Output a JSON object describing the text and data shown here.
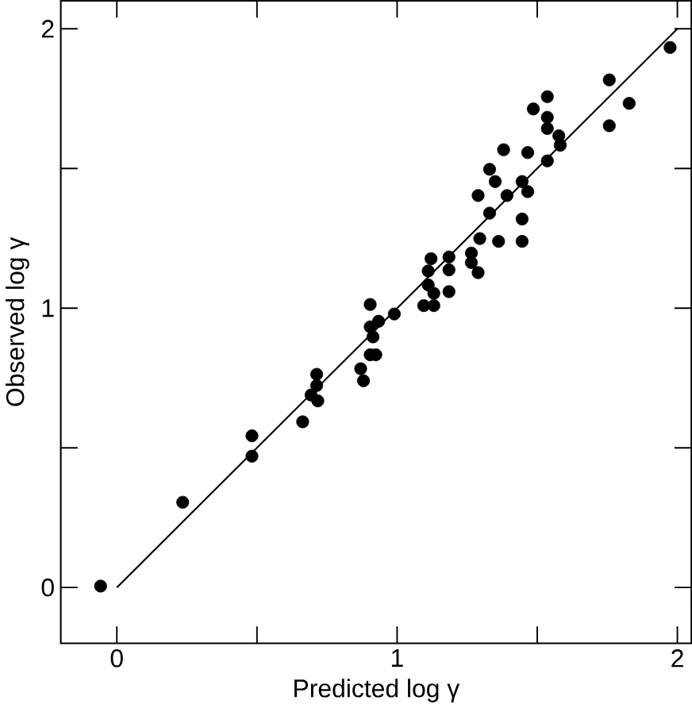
{
  "chart_data": {
    "type": "scatter",
    "xlabel": "Predicted log γ",
    "ylabel": "Observed log γ",
    "xlim": [
      -0.2,
      2.05
    ],
    "ylim": [
      -0.2,
      2.1
    ],
    "xticks": [
      0,
      {
        "value": 0.5,
        "label": null
      },
      1,
      {
        "value": 1.5,
        "label": null
      },
      2
    ],
    "yticks": [
      0,
      {
        "value": 0.5,
        "label": null
      },
      1,
      {
        "value": 1.5,
        "label": null
      },
      2
    ],
    "grid": false,
    "marker": "circle",
    "series": [
      {
        "color": "#000000",
        "x": [
          1.974,
          1.757,
          1.828,
          1.757,
          1.536,
          1.486,
          1.536,
          1.536,
          1.577,
          1.582,
          1.536,
          1.466,
          1.38,
          1.33,
          1.35,
          1.446,
          1.466,
          1.392,
          1.289,
          1.33,
          1.446,
          1.446,
          1.362,
          1.295,
          1.265,
          1.265,
          1.289,
          1.185,
          1.185,
          1.121,
          1.111,
          1.111,
          1.131,
          1.185,
          1.095,
          1.131,
          0.99,
          0.904,
          0.934,
          0.904,
          0.914,
          0.924,
          0.904,
          0.87,
          0.88,
          0.713,
          0.713,
          0.693,
          0.717,
          0.663,
          0.482,
          0.482,
          0.235,
          -0.058
        ],
        "values": [
          1.933,
          1.817,
          1.733,
          1.653,
          1.757,
          1.713,
          1.683,
          1.643,
          1.617,
          1.583,
          1.527,
          1.557,
          1.567,
          1.497,
          1.453,
          1.453,
          1.417,
          1.403,
          1.403,
          1.34,
          1.319,
          1.239,
          1.239,
          1.249,
          1.197,
          1.163,
          1.127,
          1.183,
          1.137,
          1.177,
          1.133,
          1.083,
          1.053,
          1.059,
          1.009,
          1.009,
          0.979,
          1.013,
          0.953,
          0.933,
          0.897,
          0.833,
          0.833,
          0.783,
          0.74,
          0.763,
          0.723,
          0.689,
          0.668,
          0.593,
          0.543,
          0.47,
          0.305,
          0.005
        ]
      },
      {
        "type": "line",
        "color": "#000000",
        "marker": "none",
        "line_style": "solid",
        "x": [
          0,
          2
        ],
        "values": [
          0,
          2
        ]
      }
    ]
  }
}
